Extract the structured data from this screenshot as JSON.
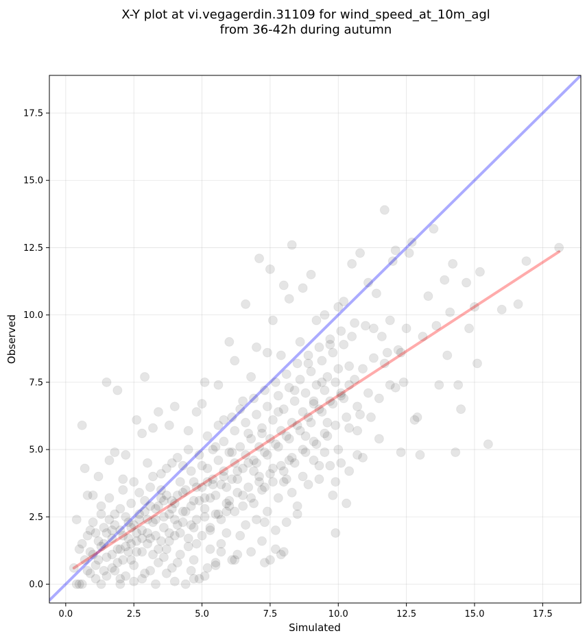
{
  "chart_data": {
    "type": "scatter",
    "title_lines": [
      "X-Y plot at vi.vegagerdin.31109 for wind_speed_at_10m_agl",
      "from 36-42h during autumn"
    ],
    "xlabel": "Simulated",
    "ylabel": "Observed",
    "xlim": [
      -0.6,
      18.9
    ],
    "ylim": [
      -0.7,
      18.9
    ],
    "x_ticks": [
      0.0,
      2.5,
      5.0,
      7.5,
      10.0,
      12.5,
      15.0,
      17.5
    ],
    "y_ticks": [
      0.0,
      2.5,
      5.0,
      7.5,
      10.0,
      12.5,
      15.0,
      17.5
    ],
    "x_tick_labels": [
      "0.0",
      "2.5",
      "5.0",
      "7.5",
      "10.0",
      "12.5",
      "15.0",
      "17.5"
    ],
    "y_tick_labels": [
      "0.0",
      "2.5",
      "5.0",
      "7.5",
      "10.0",
      "12.5",
      "15.0",
      "17.5"
    ],
    "grid": true,
    "point_color": "#000000",
    "lines": [
      {
        "role": "one-to-one",
        "color": "#0000ff",
        "x": [
          -0.6,
          18.9
        ],
        "y": [
          -0.6,
          18.9
        ]
      },
      {
        "role": "regression",
        "color": "#ff0000",
        "x": [
          0.3,
          18.1
        ],
        "y": [
          0.6,
          12.35
        ]
      }
    ],
    "points": [
      [
        0.3,
        0.6
      ],
      [
        0.4,
        2.4
      ],
      [
        0.5,
        1.3
      ],
      [
        0.6,
        5.9
      ],
      [
        0.7,
        4.3
      ],
      [
        0.5,
        0.0
      ],
      [
        0.8,
        3.3
      ],
      [
        0.9,
        2.0
      ],
      [
        1.0,
        1.1
      ],
      [
        1.0,
        3.3
      ],
      [
        1.2,
        4.0
      ],
      [
        1.3,
        2.6
      ],
      [
        1.5,
        7.5
      ],
      [
        1.6,
        4.6
      ],
      [
        1.8,
        4.9
      ],
      [
        1.9,
        7.2
      ],
      [
        1.7,
        0.6
      ],
      [
        2.0,
        0.2
      ],
      [
        2.1,
        3.9
      ],
      [
        2.2,
        4.8
      ],
      [
        2.4,
        1.5
      ],
      [
        2.6,
        6.1
      ],
      [
        2.8,
        5.6
      ],
      [
        2.9,
        7.7
      ],
      [
        3.0,
        4.5
      ],
      [
        3.1,
        0.5
      ],
      [
        3.2,
        5.8
      ],
      [
        3.4,
        6.4
      ],
      [
        3.5,
        3.2
      ],
      [
        3.6,
        1.0
      ],
      [
        3.8,
        5.9
      ],
      [
        3.9,
        2.8
      ],
      [
        4.0,
        6.6
      ],
      [
        4.1,
        0.8
      ],
      [
        4.3,
        4.4
      ],
      [
        4.5,
        5.7
      ],
      [
        4.7,
        2.1
      ],
      [
        4.8,
        6.4
      ],
      [
        5.0,
        6.7
      ],
      [
        5.1,
        7.5
      ],
      [
        5.2,
        3.8
      ],
      [
        5.3,
        1.3
      ],
      [
        5.5,
        5.1
      ],
      [
        5.6,
        7.4
      ],
      [
        5.8,
        6.1
      ],
      [
        5.9,
        2.7
      ],
      [
        6.0,
        9.0
      ],
      [
        6.1,
        4.9
      ],
      [
        6.2,
        8.3
      ],
      [
        6.3,
        1.1
      ],
      [
        6.5,
        6.8
      ],
      [
        6.6,
        10.4
      ],
      [
        6.8,
        7.7
      ],
      [
        6.9,
        4.2
      ],
      [
        7.0,
        8.8
      ],
      [
        7.1,
        12.1
      ],
      [
        7.2,
        5.6
      ],
      [
        7.3,
        2.3
      ],
      [
        7.4,
        8.6
      ],
      [
        7.5,
        11.7
      ],
      [
        7.6,
        9.8
      ],
      [
        7.7,
        1.3
      ],
      [
        7.8,
        6.4
      ],
      [
        7.9,
        8.5
      ],
      [
        8.0,
        11.1
      ],
      [
        8.1,
        3.9
      ],
      [
        8.2,
        10.6
      ],
      [
        8.3,
        12.6
      ],
      [
        8.4,
        7.2
      ],
      [
        8.5,
        2.6
      ],
      [
        8.6,
        9.0
      ],
      [
        8.7,
        11.0
      ],
      [
        8.8,
        5.5
      ],
      [
        8.9,
        8.2
      ],
      [
        9.0,
        11.5
      ],
      [
        9.1,
        6.7
      ],
      [
        9.2,
        9.8
      ],
      [
        9.3,
        4.4
      ],
      [
        9.4,
        7.5
      ],
      [
        9.5,
        10.0
      ],
      [
        9.6,
        6.0
      ],
      [
        9.7,
        8.9
      ],
      [
        9.8,
        3.3
      ],
      [
        9.9,
        1.9
      ],
      [
        10.0,
        10.3
      ],
      [
        10.1,
        7.0
      ],
      [
        10.2,
        10.5
      ],
      [
        10.3,
        3.0
      ],
      [
        10.4,
        8.1
      ],
      [
        10.5,
        11.9
      ],
      [
        10.6,
        9.7
      ],
      [
        10.7,
        5.7
      ],
      [
        10.8,
        12.3
      ],
      [
        10.9,
        4.7
      ],
      [
        11.0,
        9.6
      ],
      [
        11.1,
        11.2
      ],
      [
        11.2,
        6.2
      ],
      [
        11.3,
        8.4
      ],
      [
        11.4,
        10.8
      ],
      [
        11.5,
        5.4
      ],
      [
        11.6,
        9.2
      ],
      [
        11.7,
        13.9
      ],
      [
        11.8,
        8.6
      ],
      [
        11.9,
        7.4
      ],
      [
        12.0,
        12.0
      ],
      [
        12.1,
        12.4
      ],
      [
        12.2,
        8.7
      ],
      [
        12.3,
        4.9
      ],
      [
        12.4,
        7.5
      ],
      [
        12.5,
        9.5
      ],
      [
        12.6,
        12.3
      ],
      [
        12.7,
        12.7
      ],
      [
        12.8,
        6.1
      ],
      [
        12.9,
        6.2
      ],
      [
        13.0,
        4.8
      ],
      [
        13.1,
        9.2
      ],
      [
        13.3,
        10.7
      ],
      [
        13.5,
        13.2
      ],
      [
        13.6,
        9.6
      ],
      [
        13.7,
        7.4
      ],
      [
        13.9,
        11.3
      ],
      [
        14.0,
        8.5
      ],
      [
        14.1,
        10.1
      ],
      [
        14.2,
        11.9
      ],
      [
        14.3,
        4.9
      ],
      [
        14.4,
        7.4
      ],
      [
        14.5,
        6.5
      ],
      [
        14.7,
        11.2
      ],
      [
        14.8,
        9.5
      ],
      [
        15.0,
        10.3
      ],
      [
        15.1,
        8.2
      ],
      [
        15.2,
        11.6
      ],
      [
        15.5,
        5.2
      ],
      [
        16.0,
        10.2
      ],
      [
        16.6,
        10.4
      ],
      [
        16.9,
        12.0
      ],
      [
        18.1,
        12.5
      ],
      [
        1.1,
        1.9
      ],
      [
        1.3,
        1.4
      ],
      [
        1.4,
        2.1
      ],
      [
        1.5,
        1.0
      ],
      [
        1.6,
        2.4
      ],
      [
        1.7,
        1.7
      ],
      [
        1.8,
        2.2
      ],
      [
        1.9,
        1.3
      ],
      [
        2.0,
        2.8
      ],
      [
        2.1,
        1.8
      ],
      [
        2.2,
        2.5
      ],
      [
        2.3,
        1.2
      ],
      [
        2.4,
        3.0
      ],
      [
        2.5,
        2.2
      ],
      [
        2.6,
        1.6
      ],
      [
        2.7,
        3.4
      ],
      [
        2.8,
        2.0
      ],
      [
        2.9,
        2.7
      ],
      [
        3.0,
        1.5
      ],
      [
        3.1,
        3.6
      ],
      [
        3.2,
        2.3
      ],
      [
        3.3,
        1.8
      ],
      [
        3.4,
        2.9
      ],
      [
        3.5,
        4.1
      ],
      [
        3.6,
        2.5
      ],
      [
        3.7,
        3.3
      ],
      [
        3.8,
        1.9
      ],
      [
        3.9,
        4.5
      ],
      [
        4.0,
        3.0
      ],
      [
        4.1,
        2.2
      ],
      [
        4.2,
        3.8
      ],
      [
        4.3,
        2.7
      ],
      [
        4.4,
        3.5
      ],
      [
        4.5,
        1.7
      ],
      [
        4.6,
        4.2
      ],
      [
        4.7,
        3.1
      ],
      [
        4.8,
        2.4
      ],
      [
        4.9,
        4.8
      ],
      [
        5.0,
        3.6
      ],
      [
        5.1,
        2.8
      ],
      [
        5.2,
        4.3
      ],
      [
        5.3,
        3.2
      ],
      [
        5.4,
        5.0
      ],
      [
        5.5,
        2.6
      ],
      [
        5.6,
        4.6
      ],
      [
        5.7,
        3.7
      ],
      [
        5.8,
        5.3
      ],
      [
        5.9,
        3.0
      ],
      [
        6.0,
        4.9
      ],
      [
        6.1,
        3.9
      ],
      [
        6.2,
        5.7
      ],
      [
        6.3,
        3.4
      ],
      [
        6.4,
        5.1
      ],
      [
        6.5,
        4.3
      ],
      [
        6.6,
        6.0
      ],
      [
        6.7,
        3.6
      ],
      [
        6.8,
        5.4
      ],
      [
        6.9,
        4.6
      ],
      [
        7.0,
        6.3
      ],
      [
        7.1,
        3.8
      ],
      [
        7.2,
        5.8
      ],
      [
        7.3,
        4.9
      ],
      [
        7.4,
        6.6
      ],
      [
        7.5,
        4.1
      ],
      [
        7.6,
        6.1
      ],
      [
        7.7,
        5.2
      ],
      [
        7.8,
        7.0
      ],
      [
        7.9,
        4.4
      ],
      [
        8.0,
        6.5
      ],
      [
        8.1,
        5.5
      ],
      [
        8.2,
        7.3
      ],
      [
        8.3,
        4.7
      ],
      [
        8.4,
        6.8
      ],
      [
        8.5,
        5.9
      ],
      [
        8.6,
        7.6
      ],
      [
        8.7,
        5.0
      ],
      [
        8.8,
        7.1
      ],
      [
        8.9,
        6.2
      ],
      [
        9.0,
        7.9
      ],
      [
        9.1,
        5.3
      ],
      [
        9.2,
        7.4
      ],
      [
        9.3,
        6.5
      ],
      [
        9.4,
        8.3
      ],
      [
        9.5,
        5.6
      ],
      [
        9.6,
        7.7
      ],
      [
        9.7,
        6.8
      ],
      [
        9.8,
        8.6
      ],
      [
        9.9,
        5.9
      ],
      [
        10.0,
        8.0
      ],
      [
        10.1,
        7.1
      ],
      [
        10.2,
        8.9
      ],
      [
        10.3,
        6.2
      ],
      [
        10.4,
        7.4
      ],
      [
        10.5,
        9.2
      ],
      [
        10.7,
        6.6
      ],
      [
        10.9,
        8.0
      ],
      [
        11.1,
        7.1
      ],
      [
        11.3,
        9.5
      ],
      [
        11.5,
        6.9
      ],
      [
        11.7,
        8.2
      ],
      [
        11.9,
        9.8
      ],
      [
        12.1,
        7.3
      ],
      [
        12.3,
        8.6
      ],
      [
        0.6,
        1.5
      ],
      [
        0.7,
        0.9
      ],
      [
        0.8,
        1.8
      ],
      [
        0.9,
        1.2
      ],
      [
        1.0,
        2.3
      ],
      [
        1.1,
        0.7
      ],
      [
        1.2,
        1.6
      ],
      [
        1.3,
        2.9
      ],
      [
        1.4,
        0.5
      ],
      [
        1.5,
        1.9
      ],
      [
        1.6,
        3.2
      ],
      [
        1.7,
        1.1
      ],
      [
        1.8,
        2.6
      ],
      [
        1.9,
        0.8
      ],
      [
        2.0,
        2.0
      ],
      [
        2.1,
        3.5
      ],
      [
        2.2,
        1.4
      ],
      [
        2.3,
        2.3
      ],
      [
        2.4,
        0.9
      ],
      [
        2.5,
        3.8
      ],
      [
        2.6,
        1.9
      ],
      [
        2.7,
        2.6
      ],
      [
        2.8,
        1.2
      ],
      [
        2.9,
        3.1
      ],
      [
        3.0,
        2.4
      ],
      [
        3.1,
        1.7
      ],
      [
        3.2,
        4.0
      ],
      [
        3.3,
        2.8
      ],
      [
        3.4,
        1.3
      ],
      [
        3.5,
        3.5
      ],
      [
        3.6,
        2.1
      ],
      [
        3.7,
        4.3
      ],
      [
        3.8,
        1.6
      ],
      [
        3.9,
        3.1
      ],
      [
        4.0,
        2.4
      ],
      [
        4.1,
        4.7
      ],
      [
        4.2,
        1.9
      ],
      [
        4.3,
        3.4
      ],
      [
        4.4,
        2.7
      ],
      [
        4.5,
        5.0
      ],
      [
        4.6,
        2.2
      ],
      [
        4.7,
        3.8
      ],
      [
        4.8,
        1.5
      ],
      [
        4.9,
        3.1
      ],
      [
        5.0,
        4.4
      ],
      [
        5.1,
        2.5
      ],
      [
        5.2,
        5.5
      ],
      [
        5.3,
        2.0
      ],
      [
        5.4,
        3.9
      ],
      [
        5.5,
        3.3
      ],
      [
        5.6,
        5.9
      ],
      [
        5.7,
        2.4
      ],
      [
        5.8,
        4.2
      ],
      [
        5.9,
        3.6
      ],
      [
        6.0,
        2.9
      ],
      [
        6.1,
        6.2
      ],
      [
        6.2,
        4.5
      ],
      [
        6.3,
        3.9
      ],
      [
        6.4,
        6.5
      ],
      [
        6.5,
        2.9
      ],
      [
        6.6,
        4.8
      ],
      [
        6.7,
        5.6
      ],
      [
        6.8,
        3.2
      ],
      [
        6.9,
        6.9
      ],
      [
        7.0,
        4.5
      ],
      [
        7.1,
        5.1
      ],
      [
        7.2,
        3.5
      ],
      [
        7.3,
        7.2
      ],
      [
        7.4,
        4.8
      ],
      [
        7.5,
        5.4
      ],
      [
        7.6,
        3.8
      ],
      [
        7.7,
        7.5
      ],
      [
        7.8,
        5.1
      ],
      [
        7.9,
        5.7
      ],
      [
        8.0,
        4.2
      ],
      [
        8.1,
        7.8
      ],
      [
        8.2,
        5.4
      ],
      [
        8.3,
        6.0
      ],
      [
        8.4,
        4.5
      ],
      [
        8.5,
        8.2
      ],
      [
        8.6,
        5.7
      ],
      [
        8.7,
        6.4
      ],
      [
        8.8,
        4.9
      ],
      [
        8.9,
        8.5
      ],
      [
        9.0,
        6.0
      ],
      [
        9.1,
        6.8
      ],
      [
        9.2,
        5.2
      ],
      [
        9.3,
        8.8
      ],
      [
        9.4,
        6.4
      ],
      [
        9.5,
        7.2
      ],
      [
        9.6,
        5.5
      ],
      [
        9.7,
        9.1
      ],
      [
        9.8,
        6.7
      ],
      [
        9.9,
        7.5
      ],
      [
        10.0,
        5.0
      ],
      [
        10.1,
        9.4
      ],
      [
        10.2,
        6.9
      ],
      [
        10.4,
        5.8
      ],
      [
        10.6,
        7.6
      ],
      [
        10.8,
        6.3
      ],
      [
        0.9,
        0.4
      ],
      [
        1.2,
        0.9
      ],
      [
        1.4,
        1.5
      ],
      [
        1.5,
        0.3
      ],
      [
        1.7,
        2.0
      ],
      [
        1.8,
        0.5
      ],
      [
        2.0,
        1.3
      ],
      [
        2.1,
        0.9
      ],
      [
        2.3,
        1.7
      ],
      [
        2.4,
        2.1
      ],
      [
        2.5,
        0.7
      ],
      [
        2.6,
        1.2
      ],
      [
        2.7,
        2.4
      ],
      [
        2.8,
        1.7
      ],
      [
        2.9,
        0.4
      ],
      [
        3.0,
        1.9
      ],
      [
        3.1,
        2.9
      ],
      [
        3.2,
        1.1
      ],
      [
        3.3,
        2.4
      ],
      [
        3.4,
        0.8
      ],
      [
        3.5,
        1.6
      ],
      [
        3.6,
        3.1
      ],
      [
        3.7,
        1.3
      ],
      [
        3.8,
        2.6
      ],
      [
        3.9,
        0.6
      ],
      [
        4.0,
        1.8
      ],
      [
        4.1,
        3.3
      ],
      [
        4.2,
        1.1
      ],
      [
        4.3,
        2.3
      ],
      [
        4.4,
        0.0
      ],
      [
        4.5,
        1.4
      ],
      [
        4.6,
        2.9
      ],
      [
        4.7,
        0.9
      ],
      [
        4.8,
        3.6
      ],
      [
        4.9,
        0.2
      ],
      [
        5.0,
        1.8
      ],
      [
        5.1,
        3.2
      ],
      [
        5.2,
        0.6
      ],
      [
        5.3,
        2.1
      ],
      [
        5.4,
        3.7
      ],
      [
        5.5,
        0.8
      ],
      [
        5.6,
        2.6
      ],
      [
        5.7,
        1.5
      ],
      [
        5.8,
        4.0
      ],
      [
        5.9,
        1.9
      ],
      [
        6.0,
        3.1
      ],
      [
        6.1,
        0.9
      ],
      [
        6.2,
        2.7
      ],
      [
        6.3,
        4.2
      ],
      [
        6.4,
        1.8
      ],
      [
        6.5,
        3.3
      ],
      [
        6.6,
        2.2
      ],
      [
        6.7,
        4.5
      ],
      [
        6.8,
        1.2
      ],
      [
        6.9,
        3.0
      ],
      [
        7.0,
        2.4
      ],
      [
        7.1,
        4.0
      ],
      [
        7.2,
        1.6
      ],
      [
        7.3,
        3.6
      ],
      [
        7.4,
        2.7
      ],
      [
        7.5,
        0.9
      ],
      [
        7.6,
        4.3
      ],
      [
        7.7,
        2.0
      ],
      [
        7.8,
        3.2
      ],
      [
        7.9,
        1.1
      ],
      [
        8.0,
        3.8
      ],
      [
        8.1,
        2.3
      ],
      [
        8.2,
        4.6
      ],
      [
        8.3,
        3.4
      ],
      [
        8.5,
        2.9
      ],
      [
        8.7,
        4.0
      ],
      [
        8.9,
        3.7
      ],
      [
        9.1,
        4.6
      ],
      [
        9.3,
        3.9
      ],
      [
        9.5,
        4.9
      ],
      [
        9.7,
        4.4
      ],
      [
        9.9,
        3.8
      ],
      [
        10.1,
        4.5
      ],
      [
        10.4,
        4.2
      ],
      [
        10.7,
        4.8
      ],
      [
        0.4,
        0.0
      ],
      [
        0.6,
        0.0
      ],
      [
        1.3,
        0.0
      ],
      [
        2.0,
        0.0
      ],
      [
        2.5,
        0.1
      ],
      [
        3.3,
        0.0
      ],
      [
        4.0,
        0.1
      ],
      [
        4.7,
        0.2
      ],
      [
        5.1,
        0.3
      ],
      [
        5.5,
        0.7
      ],
      [
        6.2,
        0.9
      ],
      [
        7.3,
        0.8
      ],
      [
        8.0,
        1.2
      ],
      [
        2.2,
        0.3
      ],
      [
        2.8,
        0.2
      ],
      [
        3.7,
        0.4
      ],
      [
        4.6,
        0.5
      ],
      [
        5.7,
        1.2
      ],
      [
        0.8,
        0.5
      ],
      [
        1.1,
        0.2
      ]
    ]
  }
}
